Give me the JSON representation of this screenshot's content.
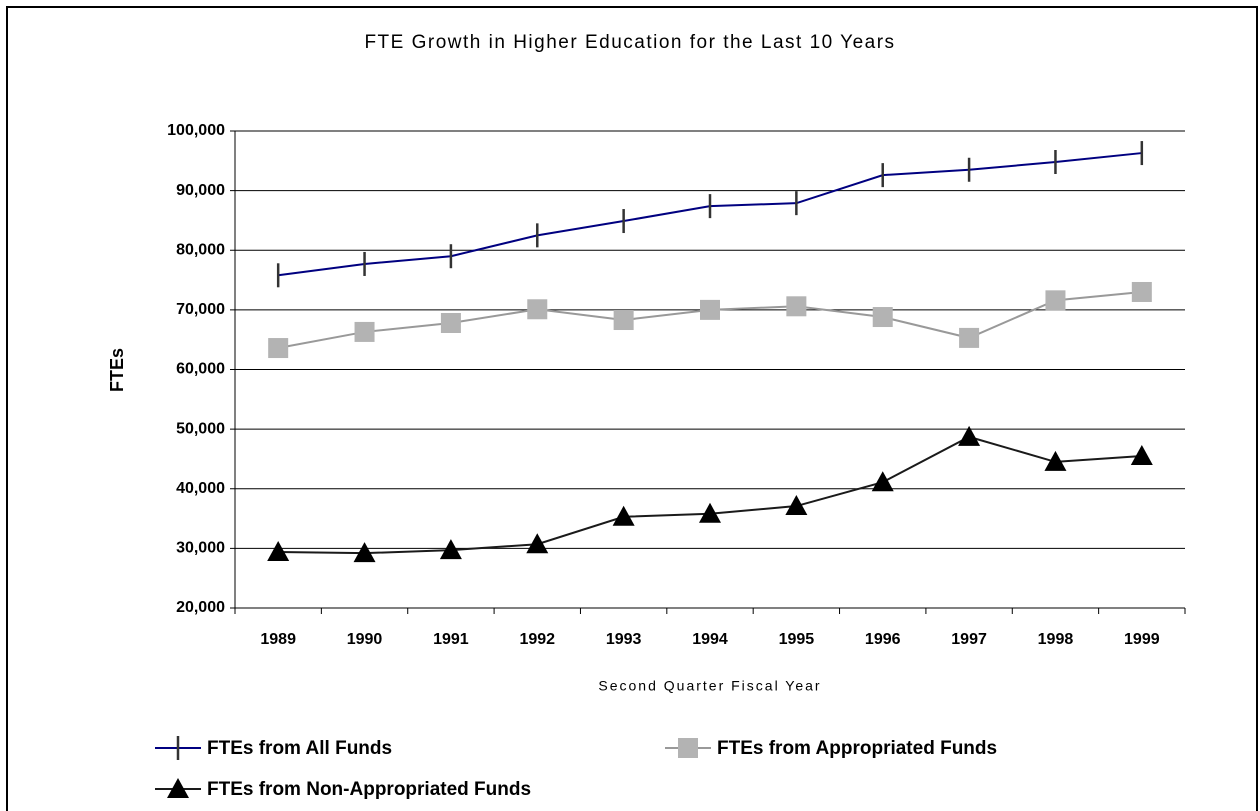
{
  "chart_data": {
    "type": "line",
    "title": "FTE Growth in Higher Education for the Last 10 Years",
    "x_label": "Second Quarter Fiscal Year",
    "y_label": "FTEs",
    "categories": [
      "1989",
      "1990",
      "1991",
      "1992",
      "1993",
      "1994",
      "1995",
      "1996",
      "1997",
      "1998",
      "1999"
    ],
    "series": [
      {
        "name": "FTEs from All Funds",
        "color": "#000080",
        "marker": "dash",
        "values": [
          75800,
          77700,
          79000,
          82500,
          84900,
          87400,
          87900,
          92600,
          93500,
          94800,
          96300
        ]
      },
      {
        "name": "FTEs from Appropriated Funds",
        "color": "#b3b3b3",
        "marker": "square",
        "values": [
          63600,
          66300,
          67800,
          70100,
          68300,
          70000,
          70600,
          68800,
          65300,
          71600,
          73000
        ]
      },
      {
        "name": "FTEs from Non-Appropriated Funds",
        "color": "#1a1a1a",
        "marker": "triangle",
        "values": [
          29400,
          29200,
          29700,
          30700,
          35300,
          35800,
          37100,
          41100,
          48700,
          44500,
          45500
        ]
      }
    ],
    "ylim": [
      20000,
      100000
    ],
    "yticks": [
      {
        "value": 20000,
        "label": "20,000"
      },
      {
        "value": 30000,
        "label": "30,000"
      },
      {
        "value": 40000,
        "label": "40,000"
      },
      {
        "value": 50000,
        "label": "50,000"
      },
      {
        "value": 60000,
        "label": "60,000"
      },
      {
        "value": 70000,
        "label": "70,000"
      },
      {
        "value": 80000,
        "label": "80,000"
      },
      {
        "value": 90000,
        "label": "90,000"
      },
      {
        "value": 100000,
        "label": "100,000"
      }
    ],
    "grid": true,
    "legend": "bottom"
  }
}
